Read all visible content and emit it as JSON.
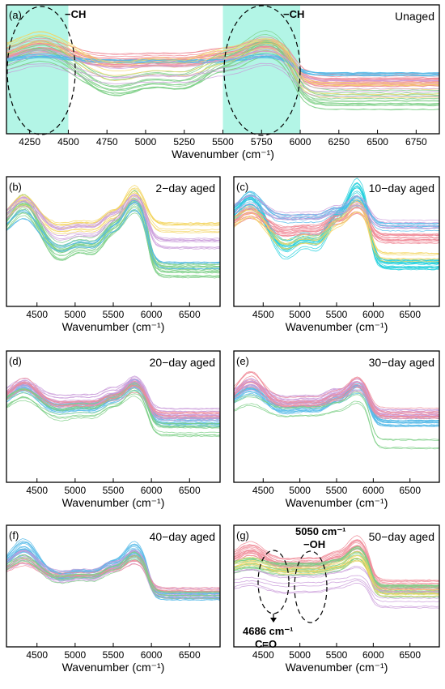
{
  "chart_data": [
    {
      "panel_label": "(a)",
      "title": "Unaged",
      "type": "line",
      "xlabel": "Wavenumber",
      "xunit": "(cm⁻¹)",
      "xlim": [
        4100,
        6900
      ],
      "xticks": [
        "4250",
        "4500",
        "4750",
        "5000",
        "5250",
        "5500",
        "5750",
        "6000",
        "6250",
        "6500",
        "6750"
      ],
      "highlight_regions": [
        [
          4100,
          4500
        ],
        [
          5500,
          6000
        ]
      ],
      "highlight_color": "#b3f5e6",
      "annotations": [
        {
          "text": "−CH",
          "x": 4330
        },
        {
          "text": "−CH",
          "x": 6000
        }
      ]
    },
    {
      "panel_label": "(b)",
      "title": "2−day aged",
      "type": "line",
      "xlabel": "Wavenumber",
      "xunit": "(cm⁻¹)",
      "xlim": [
        4100,
        6900
      ],
      "xticks": [
        "4500",
        "5000",
        "5500",
        "6000",
        "6500"
      ]
    },
    {
      "panel_label": "(c)",
      "title": "10−day aged",
      "type": "line",
      "xlabel": "Wavenumber",
      "xunit": "(cm⁻¹)",
      "xlim": [
        4100,
        6900
      ],
      "xticks": [
        "4500",
        "5000",
        "5500",
        "6000",
        "6500"
      ]
    },
    {
      "panel_label": "(d)",
      "title": "20−day aged",
      "type": "line",
      "xlabel": "Wavenumber",
      "xunit": "(cm⁻¹)",
      "xlim": [
        4100,
        6900
      ],
      "xticks": [
        "4500",
        "5000",
        "5500",
        "6000",
        "6500"
      ]
    },
    {
      "panel_label": "(e)",
      "title": "30−day aged",
      "type": "line",
      "xlabel": "Wavenumber",
      "xunit": "(cm⁻¹)",
      "xlim": [
        4100,
        6900
      ],
      "xticks": [
        "4500",
        "5000",
        "5500",
        "6000",
        "6500"
      ]
    },
    {
      "panel_label": "(f)",
      "title": "40−day aged",
      "type": "line",
      "xlabel": "Wavenumber",
      "xunit": "(cm⁻¹)",
      "xlim": [
        4100,
        6900
      ],
      "xticks": [
        "4500",
        "5000",
        "5500",
        "6000",
        "6500"
      ]
    },
    {
      "panel_label": "(g)",
      "title": "50−day aged",
      "type": "line",
      "xlabel": "Wavenumber",
      "xunit": "(cm⁻¹)",
      "xlim": [
        4100,
        6900
      ],
      "xticks": [
        "4500",
        "5000",
        "5500",
        "6000",
        "6500"
      ],
      "annotations": [
        {
          "text": "5050 cm⁻¹",
          "x": 5050
        },
        {
          "text": "−OH",
          "x": 5050
        },
        {
          "text": "4686 cm⁻¹",
          "x": 4686
        },
        {
          "text": "C=O",
          "x": 4686
        }
      ]
    }
  ],
  "colors": {
    "pink": "#f08a96",
    "green": "#7dcf86",
    "blue": "#52b9e8",
    "yellow": "#f3d55f",
    "purple": "#c99ad9",
    "cyan": "#22d0dd",
    "highlight": "#b3f5e6"
  }
}
